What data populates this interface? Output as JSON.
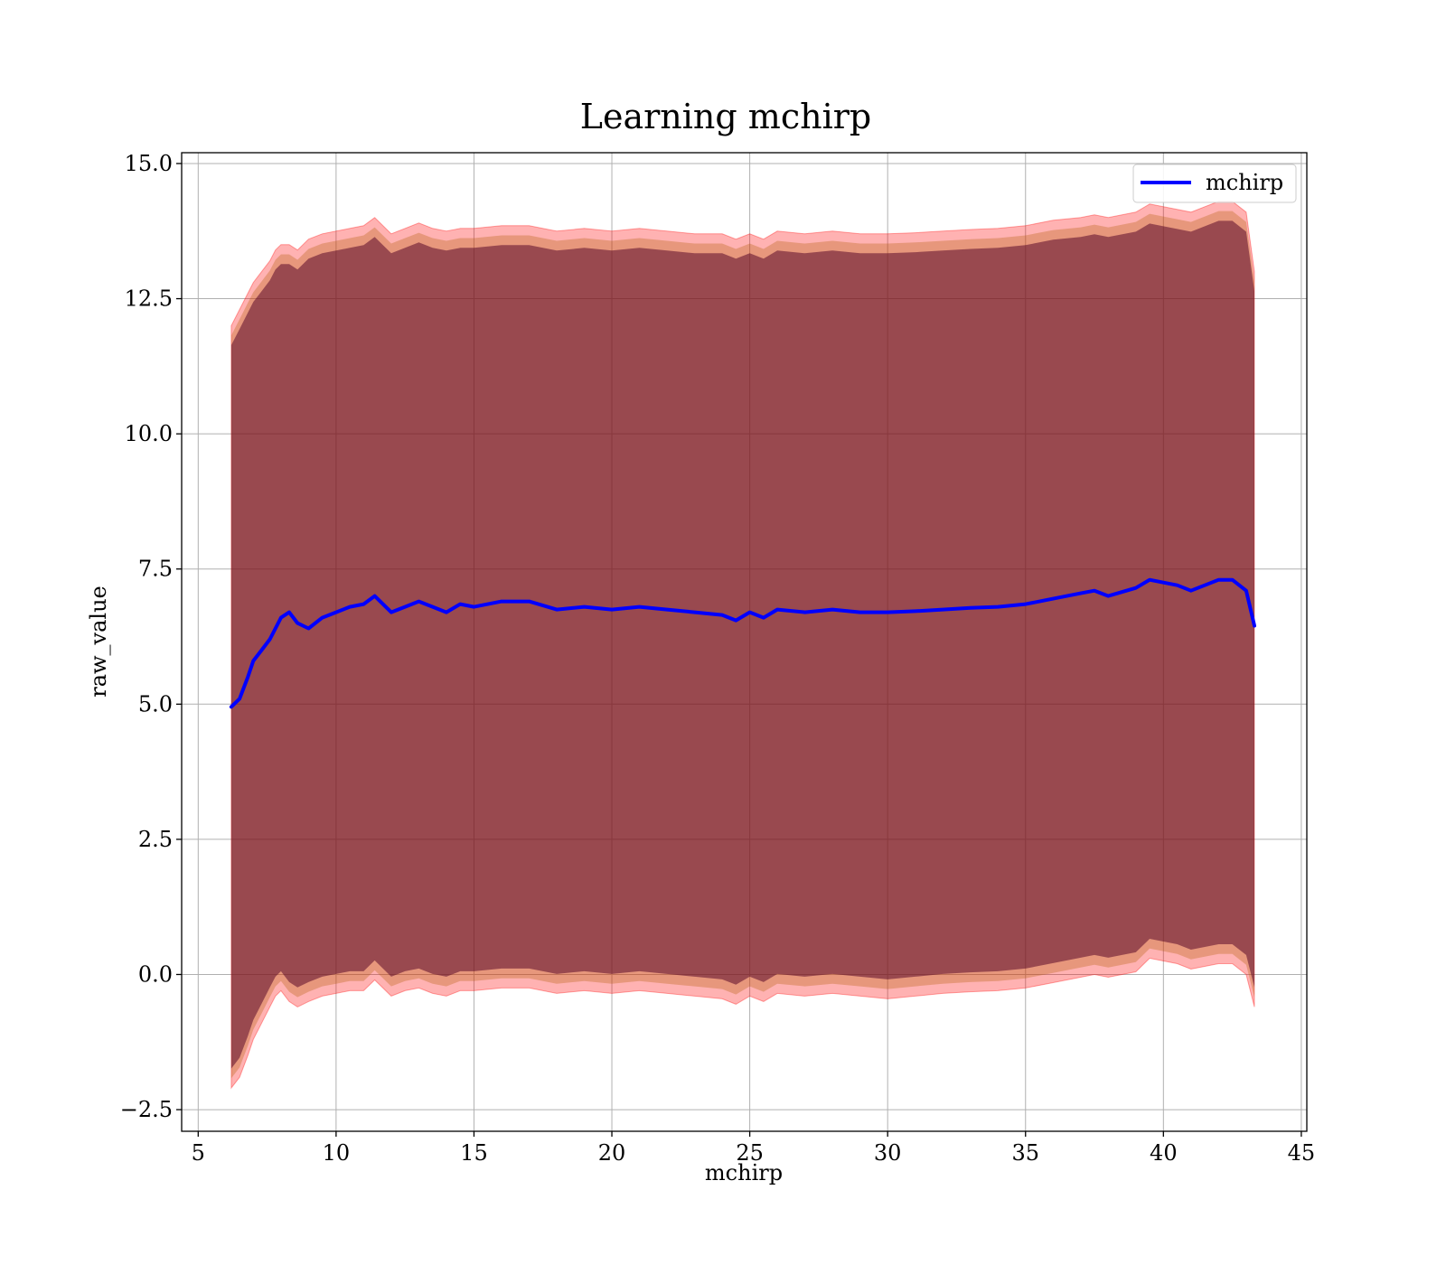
{
  "chart_data": {
    "type": "area",
    "title": "Learning mchirp",
    "xlabel": "mchirp",
    "ylabel": "raw_value",
    "xlim": [
      4.4,
      45.2
    ],
    "ylim": [
      -2.9,
      15.2
    ],
    "xticks": [
      5,
      10,
      15,
      20,
      25,
      30,
      35,
      40,
      45
    ],
    "yticks": [
      -2.5,
      0.0,
      2.5,
      5.0,
      7.5,
      10.0,
      12.5,
      15.0
    ],
    "xtick_labels": [
      "5",
      "10",
      "15",
      "20",
      "25",
      "30",
      "35",
      "40",
      "45"
    ],
    "ytick_labels": [
      "−2.5",
      "0.0",
      "2.5",
      "5.0",
      "7.5",
      "10.0",
      "12.5",
      "15.0"
    ],
    "grid": true,
    "legend": {
      "position": "top-right",
      "entries": [
        "mchirp"
      ]
    },
    "colors": {
      "line": "#0000ff",
      "band_outer": "#ff0000",
      "band_middle": "#b05a00",
      "band_inner": "#5a0a2a"
    },
    "series": [
      {
        "name": "mchirp",
        "x": [
          6.2,
          6.5,
          6.8,
          7.0,
          7.3,
          7.6,
          7.8,
          8.0,
          8.3,
          8.6,
          9.0,
          9.5,
          10.0,
          10.5,
          11.0,
          11.4,
          12.0,
          12.5,
          13.0,
          13.5,
          14.0,
          14.5,
          15.0,
          16.0,
          17.0,
          18.0,
          19.0,
          20.0,
          21.0,
          22.0,
          23.0,
          24.0,
          24.5,
          25.0,
          25.5,
          26.0,
          27.0,
          28.0,
          29.0,
          30.0,
          31.0,
          32.0,
          33.0,
          34.0,
          35.0,
          36.0,
          37.0,
          37.5,
          38.0,
          39.0,
          39.5,
          40.0,
          40.5,
          41.0,
          41.5,
          42.0,
          42.5,
          43.0,
          43.3
        ],
        "y": [
          4.95,
          5.1,
          5.5,
          5.8,
          6.0,
          6.2,
          6.4,
          6.6,
          6.7,
          6.5,
          6.4,
          6.6,
          6.7,
          6.8,
          6.85,
          7.0,
          6.7,
          6.8,
          6.9,
          6.8,
          6.7,
          6.85,
          6.8,
          6.9,
          6.9,
          6.75,
          6.8,
          6.75,
          6.8,
          6.75,
          6.7,
          6.65,
          6.55,
          6.7,
          6.6,
          6.75,
          6.7,
          6.75,
          6.7,
          6.7,
          6.72,
          6.75,
          6.78,
          6.8,
          6.85,
          6.95,
          7.05,
          7.1,
          7.0,
          7.15,
          7.3,
          7.25,
          7.2,
          7.1,
          7.2,
          7.3,
          7.3,
          7.1,
          6.45
        ],
        "band_outer_upper": [
          12.0,
          12.3,
          12.6,
          12.8,
          13.0,
          13.2,
          13.4,
          13.5,
          13.5,
          13.4,
          13.6,
          13.7,
          13.75,
          13.8,
          13.85,
          14.0,
          13.7,
          13.8,
          13.9,
          13.8,
          13.75,
          13.8,
          13.8,
          13.85,
          13.85,
          13.75,
          13.8,
          13.75,
          13.8,
          13.75,
          13.7,
          13.7,
          13.6,
          13.7,
          13.6,
          13.75,
          13.7,
          13.75,
          13.7,
          13.7,
          13.72,
          13.75,
          13.78,
          13.8,
          13.85,
          13.95,
          14.0,
          14.05,
          14.0,
          14.1,
          14.25,
          14.2,
          14.15,
          14.1,
          14.2,
          14.3,
          14.3,
          14.1,
          13.0
        ],
        "band_outer_lower": [
          -2.1,
          -1.9,
          -1.5,
          -1.2,
          -0.9,
          -0.6,
          -0.4,
          -0.3,
          -0.5,
          -0.6,
          -0.5,
          -0.4,
          -0.35,
          -0.3,
          -0.3,
          -0.1,
          -0.4,
          -0.3,
          -0.25,
          -0.35,
          -0.4,
          -0.3,
          -0.3,
          -0.25,
          -0.25,
          -0.35,
          -0.3,
          -0.35,
          -0.3,
          -0.35,
          -0.4,
          -0.45,
          -0.55,
          -0.4,
          -0.5,
          -0.35,
          -0.4,
          -0.35,
          -0.4,
          -0.45,
          -0.4,
          -0.35,
          -0.32,
          -0.3,
          -0.25,
          -0.15,
          -0.05,
          0.0,
          -0.05,
          0.05,
          0.3,
          0.25,
          0.2,
          0.1,
          0.15,
          0.2,
          0.2,
          0.0,
          -0.6
        ]
      }
    ]
  }
}
